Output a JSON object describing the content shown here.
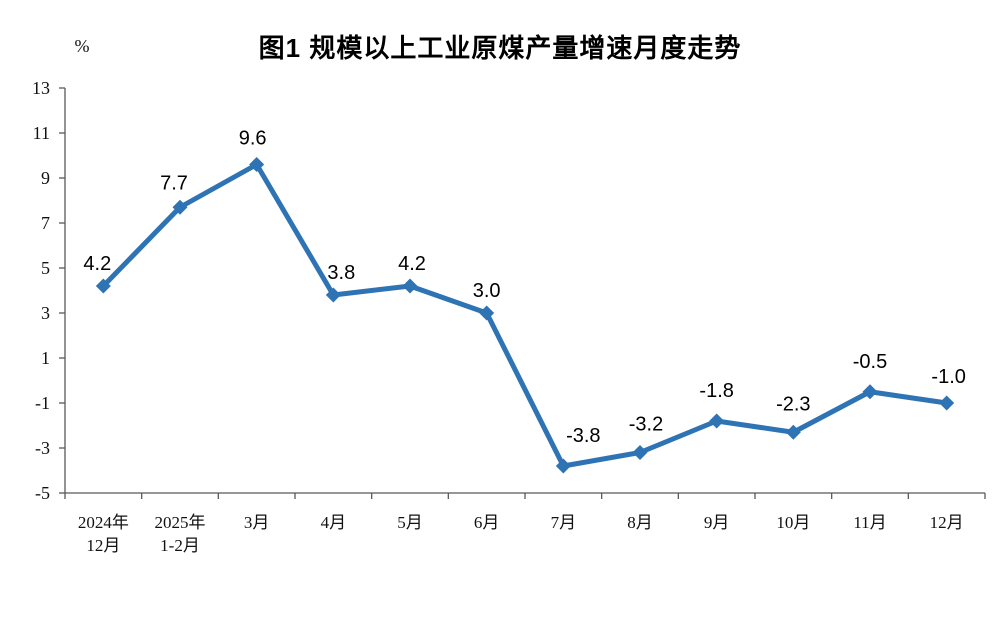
{
  "chart_data": {
    "type": "line",
    "title": "图1  规模以上工业原煤产量增速月度走势",
    "unit": "%",
    "categories": [
      "2024年\n12月",
      "2025年\n1-2月",
      "3月",
      "4月",
      "5月",
      "6月",
      "7月",
      "8月",
      "9月",
      "10月",
      "11月",
      "12月"
    ],
    "values": [
      4.2,
      7.7,
      9.6,
      3.8,
      4.2,
      3.0,
      -3.8,
      -3.2,
      -1.8,
      -2.3,
      -0.5,
      -1.0
    ],
    "data_labels": [
      "4.2",
      "7.7",
      "9.6",
      "3.8",
      "4.2",
      "3.0",
      "-3.8",
      "-3.2",
      "-1.8",
      "-2.3",
      "-0.5",
      "-1.0"
    ],
    "xlabel": "",
    "ylabel": "%",
    "ylim": [
      -5,
      13
    ],
    "yticks": [
      13,
      11,
      9,
      7,
      5,
      3,
      1,
      -1,
      -3,
      -5
    ],
    "grid": false,
    "legend": "none",
    "marker": "diamond",
    "line_color": "#2E74B5",
    "axis_color": "#595959",
    "label_color": "#000000"
  }
}
